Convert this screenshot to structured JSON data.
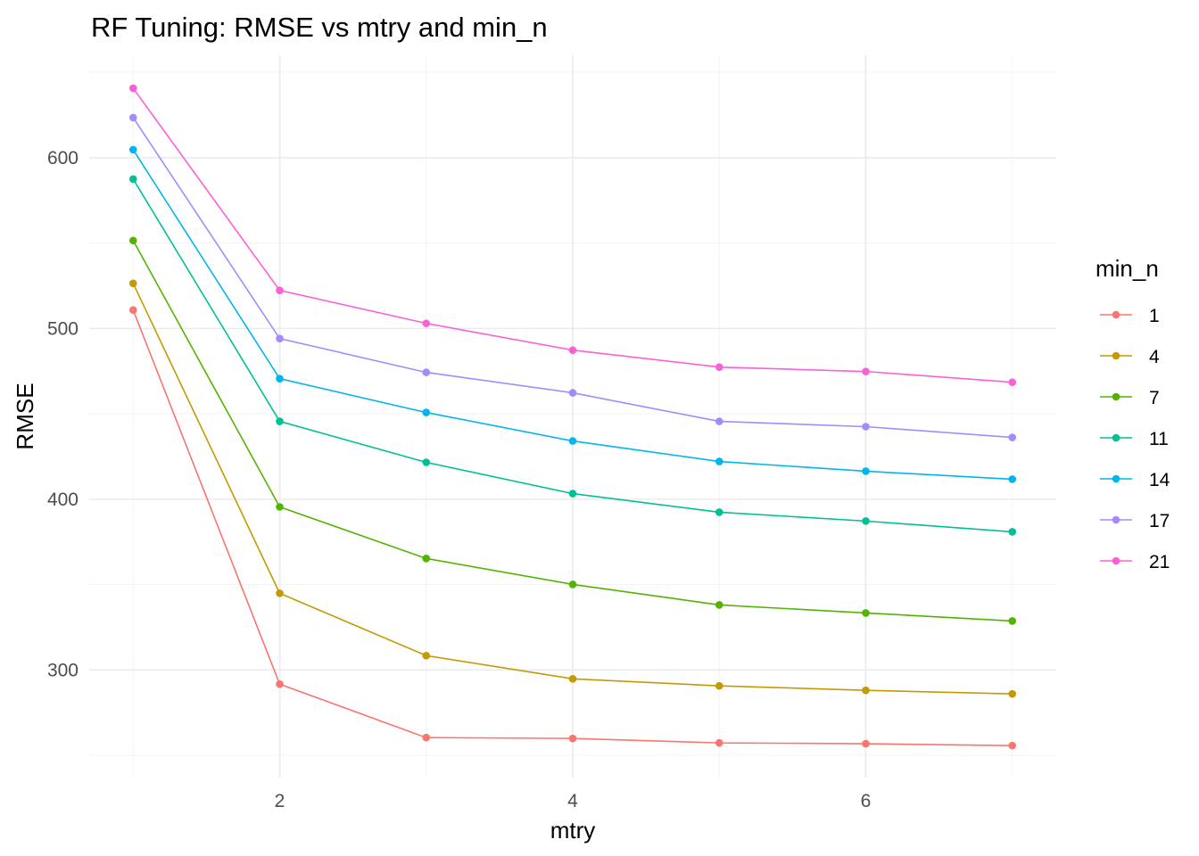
{
  "chart_data": {
    "type": "line",
    "title": "RF Tuning: RMSE vs mtry and min_n",
    "xlabel": "mtry",
    "ylabel": "RMSE",
    "xlim": [
      0.7,
      7.3
    ],
    "ylim": [
      237,
      660
    ],
    "x_ticks": [
      2,
      4,
      6
    ],
    "y_ticks": [
      300,
      400,
      500,
      600
    ],
    "grid": true,
    "legend": {
      "title": "min_n",
      "placement": "right"
    },
    "x": [
      1,
      2,
      3,
      4,
      5,
      6,
      7
    ],
    "series": [
      {
        "name": "1",
        "color": "#F8766D",
        "values": [
          510.8,
          291.7,
          260.4,
          259.9,
          257.3,
          256.8,
          255.7
        ]
      },
      {
        "name": "4",
        "color": "#C49A00",
        "values": [
          526.4,
          344.9,
          308.4,
          294.8,
          290.7,
          288.1,
          286.0
        ]
      },
      {
        "name": "7",
        "color": "#53B400",
        "values": [
          551.5,
          395.5,
          365.3,
          350.1,
          338.1,
          333.4,
          328.7
        ]
      },
      {
        "name": "11",
        "color": "#00C094",
        "values": [
          587.5,
          445.6,
          421.6,
          403.3,
          392.4,
          387.2,
          380.9
        ]
      },
      {
        "name": "14",
        "color": "#00B6EB",
        "values": [
          604.7,
          470.6,
          450.8,
          434.1,
          422.1,
          416.4,
          411.7
        ]
      },
      {
        "name": "17",
        "color": "#A58AFF",
        "values": [
          623.5,
          494.1,
          474.3,
          462.3,
          445.6,
          442.5,
          436.2
        ]
      },
      {
        "name": "21",
        "color": "#FB61D7",
        "values": [
          640.7,
          522.3,
          503.0,
          487.3,
          477.4,
          474.8,
          468.5
        ]
      }
    ]
  }
}
